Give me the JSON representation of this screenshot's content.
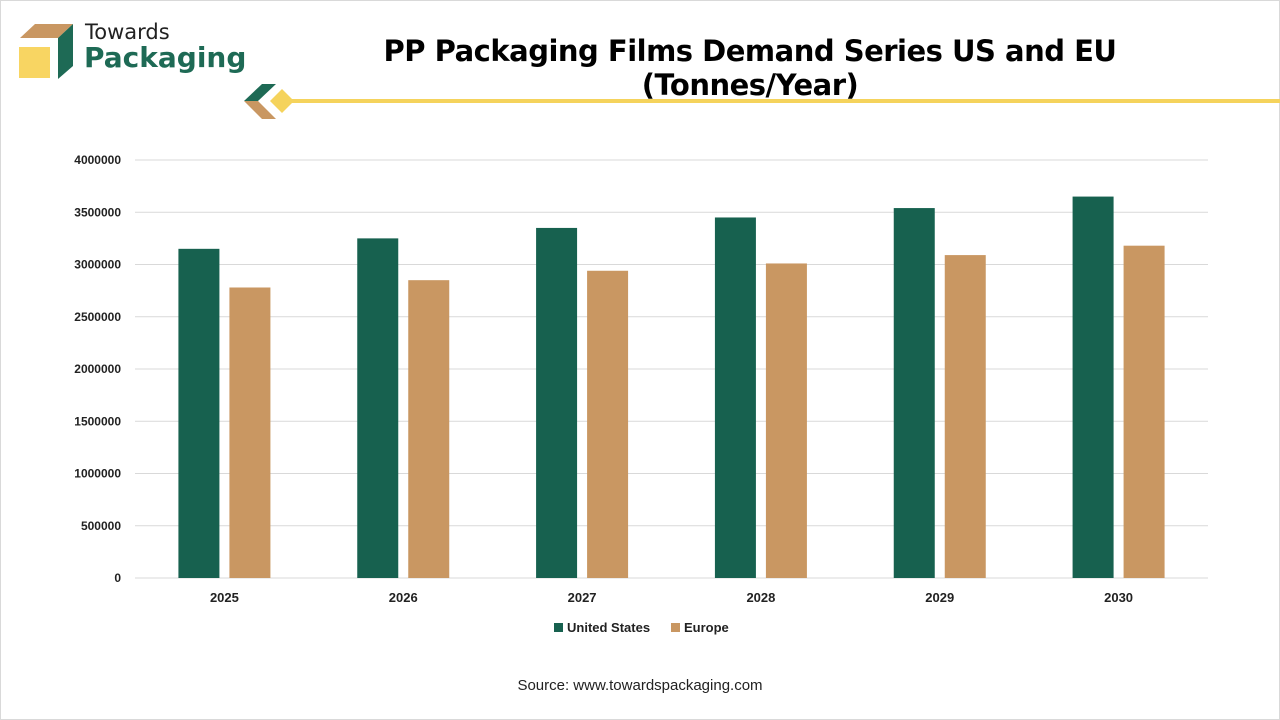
{
  "brand": {
    "line1": "Towards",
    "line2": "Packaging"
  },
  "colors": {
    "us": "#17614f",
    "europe": "#c99762",
    "accent": "#f5d35c",
    "grid": "#d9d9d9"
  },
  "source": "Source: www.towardspackaging.com",
  "chart_data": {
    "type": "bar",
    "title": "PP Packaging Films Demand Series US and EU (Tonnes/Year)",
    "categories": [
      "2025",
      "2026",
      "2027",
      "2028",
      "2029",
      "2030"
    ],
    "series": [
      {
        "name": "United States",
        "values": [
          3150000,
          3250000,
          3350000,
          3450000,
          3540000,
          3650000
        ]
      },
      {
        "name": "Europe",
        "values": [
          2780000,
          2850000,
          2940000,
          3010000,
          3090000,
          3180000
        ]
      }
    ],
    "xlabel": "",
    "ylabel": "",
    "ylim": [
      0,
      4000000
    ],
    "yticks": [
      "0",
      "500000",
      "1000000",
      "1500000",
      "2000000",
      "2500000",
      "3000000",
      "3500000",
      "4000000"
    ],
    "grid": true,
    "legend": "bottom"
  }
}
